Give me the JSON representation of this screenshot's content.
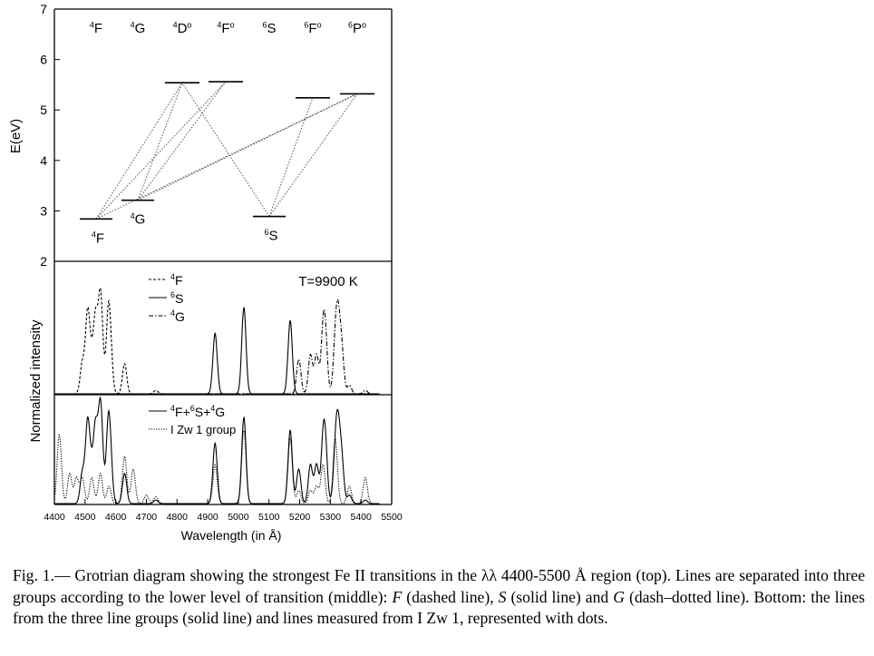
{
  "grotrian": {
    "ylabel": "E(eV)",
    "yticks": [
      "2",
      "3",
      "4",
      "5",
      "6",
      "7"
    ],
    "ylim": [
      2,
      7
    ],
    "headers": [
      {
        "sup": "4",
        "main": "F",
        "post": ""
      },
      {
        "sup": "4",
        "main": "G",
        "post": ""
      },
      {
        "sup": "4",
        "main": "D",
        "post": "o"
      },
      {
        "sup": "4",
        "main": "F",
        "post": "o"
      },
      {
        "sup": "6",
        "main": "S",
        "post": ""
      },
      {
        "sup": "6",
        "main": "F",
        "post": "o"
      },
      {
        "sup": "6",
        "main": "P",
        "post": "o"
      }
    ],
    "levels": [
      {
        "energy": 2.84,
        "label": {
          "sup": "4",
          "main": "F"
        }
      },
      {
        "energy": 3.21,
        "label": {
          "sup": "4",
          "main": "G"
        }
      },
      {
        "energy": 5.54,
        "label": null
      },
      {
        "energy": 5.56,
        "label": null
      },
      {
        "energy": 2.89,
        "label": {
          "sup": "6",
          "main": "S"
        }
      },
      {
        "energy": 5.24,
        "label": null
      },
      {
        "energy": 5.32,
        "label": null
      }
    ]
  },
  "spectra": {
    "ylabel": "Normalized intensity",
    "xlabel": "Wavelength (in Å)",
    "xticks": [
      "4400",
      "4500",
      "4600",
      "4700",
      "4800",
      "4900",
      "5000",
      "5100",
      "5200",
      "5300",
      "5400",
      "5500"
    ],
    "xlim": [
      4400,
      5500
    ],
    "temperature": "T=9900 K",
    "legend_groups": [
      {
        "style": "dashed",
        "sup": "4",
        "main": "F"
      },
      {
        "style": "solid",
        "sup": "6",
        "main": "S"
      },
      {
        "style": "dashdot",
        "sup": "4",
        "main": "G"
      }
    ],
    "legend_bottom": [
      {
        "style": "solid",
        "text": "F+ S+ G"
      },
      {
        "style": "dotted",
        "text": "I Zw 1 group"
      }
    ]
  },
  "chart_data": [
    {
      "type": "line",
      "name": "F",
      "style": "dashed",
      "x": [
        4491,
        4508,
        4520,
        4534,
        4549,
        4555,
        4576,
        4584,
        4629,
        4731
      ],
      "values": [
        0.35,
        0.9,
        0.35,
        0.85,
        0.9,
        0.35,
        0.9,
        0.3,
        0.35,
        0.04
      ]
    },
    {
      "type": "line",
      "name": "S",
      "style": "solid",
      "x": [
        4924,
        5018,
        5169
      ],
      "values": [
        0.7,
        1.0,
        0.85
      ]
    },
    {
      "type": "line",
      "name": "G",
      "style": "dashdot",
      "x": [
        5197,
        5235,
        5255,
        5276,
        5284,
        5316,
        5325,
        5337,
        5362,
        5414
      ],
      "values": [
        0.4,
        0.45,
        0.45,
        0.6,
        0.55,
        0.5,
        0.75,
        0.5,
        0.1,
        0.04
      ]
    },
    {
      "type": "line",
      "name": "I Zw 1 group",
      "style": "dotted",
      "x": [
        4416,
        4450,
        4472,
        4491,
        4522,
        4550,
        4578,
        4629,
        4657,
        4700,
        4731,
        4924,
        5018,
        5169,
        5197,
        5235,
        5255,
        5276,
        5316,
        5362,
        5414
      ],
      "values": [
        0.8,
        0.35,
        0.3,
        0.3,
        0.3,
        0.35,
        0.2,
        0.55,
        0.4,
        0.1,
        0.08,
        0.45,
        0.85,
        0.75,
        0.15,
        0.15,
        0.2,
        0.45,
        0.75,
        0.2,
        0.3
      ]
    }
  ],
  "caption": {
    "prefix": "Fig. 1.— Grotrian diagram showing the strongest Fe II transitions in the λλ 4400-5500 Å region (top). Lines are separated into three groups according to the lower level of transition (middle): ",
    "F": "F",
    "t1": " (dashed line), ",
    "S": "S",
    "t2": " (solid line) and ",
    "G": "G",
    "t3": " (dash–dotted line). Bottom: the lines from the three line groups (solid line) and lines measured from I Zw 1, represented with dots."
  }
}
